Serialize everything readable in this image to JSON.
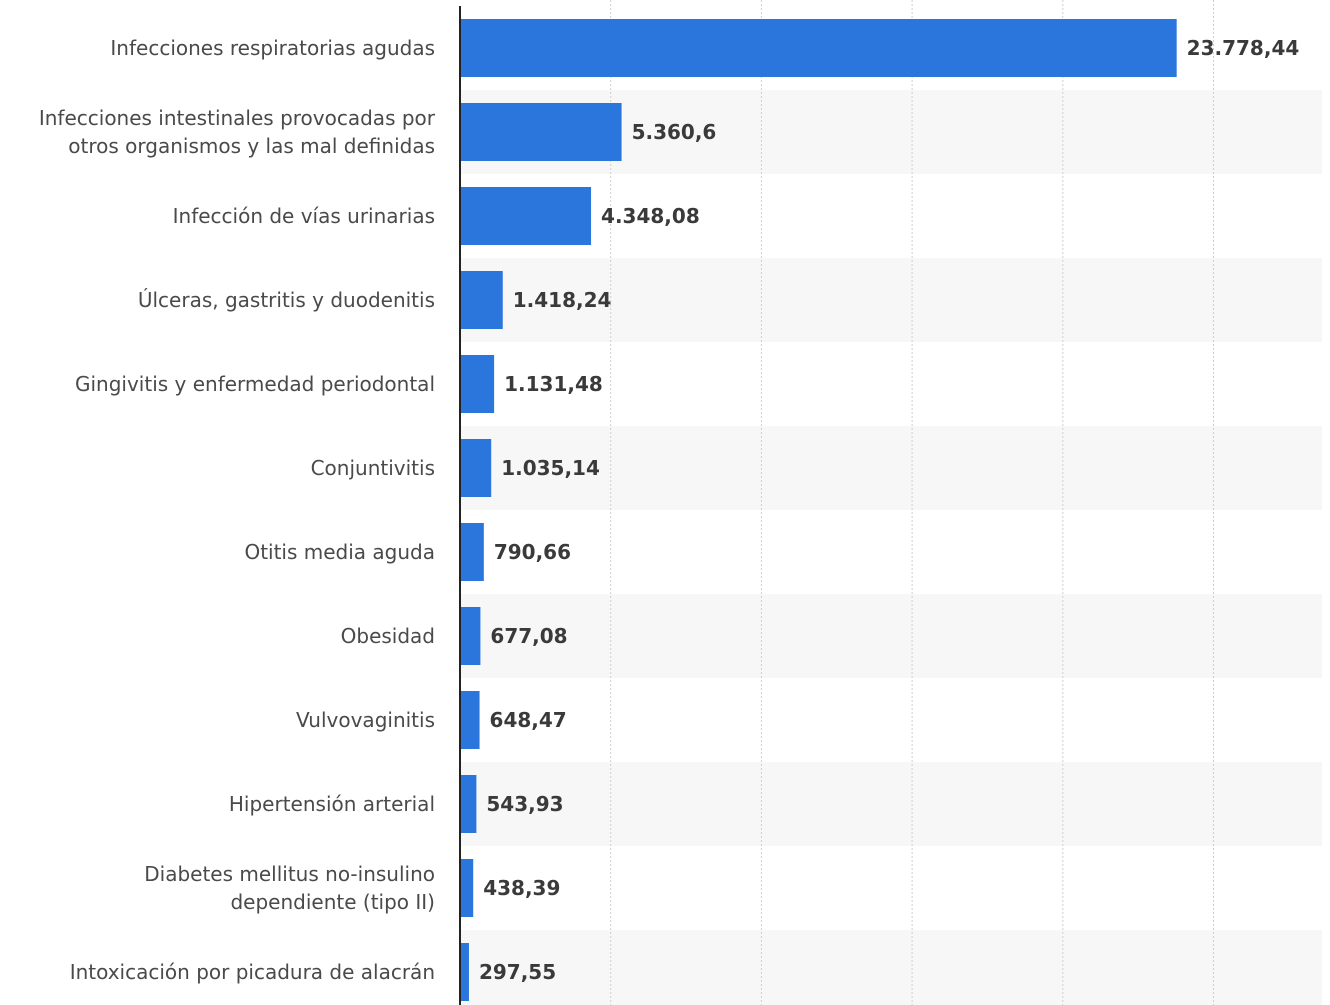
{
  "chart_data": {
    "type": "bar",
    "orientation": "horizontal",
    "categories": [
      [
        "Infecciones respiratorias agudas"
      ],
      [
        "Infecciones intestinales provocadas por",
        "otros organismos y las mal definidas"
      ],
      [
        "Infección de vías urinarias"
      ],
      [
        "Úlceras, gastritis y duodenitis"
      ],
      [
        "Gingivitis y enfermedad periodontal"
      ],
      [
        "Conjuntivitis"
      ],
      [
        "Otitis media aguda"
      ],
      [
        "Obesidad"
      ],
      [
        "Vulvovaginitis"
      ],
      [
        "Hipertensión arterial"
      ],
      [
        "Diabetes mellitus no-insulino",
        "dependiente (tipo II)"
      ],
      [
        "Intoxicación por picadura de alacrán"
      ]
    ],
    "values": [
      23778.44,
      5360.6,
      4348.08,
      1418.24,
      1131.48,
      1035.14,
      790.66,
      677.08,
      648.47,
      543.93,
      438.39,
      297.55
    ],
    "value_labels": [
      "23.778,44",
      "5.360,6",
      "4.348,08",
      "1.418,24",
      "1.131,48",
      "1.035,14",
      "790,66",
      "677,08",
      "648,47",
      "543,93",
      "438,39",
      "297,55"
    ],
    "xlim": [
      0,
      28600
    ],
    "grid_step": 5000,
    "grid": true,
    "bar_color": "#2a76dd",
    "stripe_color": "#f7f7f7",
    "title": "",
    "xlabel": "",
    "ylabel": ""
  }
}
